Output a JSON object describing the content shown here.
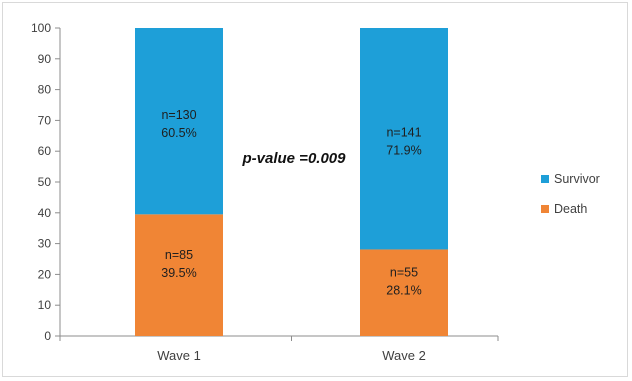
{
  "chart_data": {
    "type": "bar",
    "stacked": true,
    "categories": [
      "Wave 1",
      "Wave 2"
    ],
    "series": [
      {
        "name": "Death",
        "values": [
          39.5,
          28.1
        ],
        "color": "#f08535",
        "labels": [
          [
            "n=85",
            "39.5%"
          ],
          [
            "n=55",
            "28.1%"
          ]
        ]
      },
      {
        "name": "Survivor",
        "values": [
          60.5,
          71.9
        ],
        "color": "#1e9fd8",
        "labels": [
          [
            "n=130",
            "60.5%"
          ],
          [
            "n=141",
            "71.9%"
          ]
        ]
      }
    ],
    "ylim": [
      0,
      100
    ],
    "yticks": [
      0,
      10,
      20,
      30,
      40,
      50,
      60,
      70,
      80,
      90,
      100
    ],
    "ytick_labels": [
      "0",
      "10",
      "20",
      "30",
      "40",
      "50",
      "60",
      "70",
      "80",
      "90",
      "100"
    ],
    "grid": false,
    "legend": {
      "placement": "right",
      "order": [
        "Survivor",
        "Death"
      ]
    },
    "annotation": "p-value =0.009",
    "title": "",
    "xlabel": "",
    "ylabel": ""
  }
}
